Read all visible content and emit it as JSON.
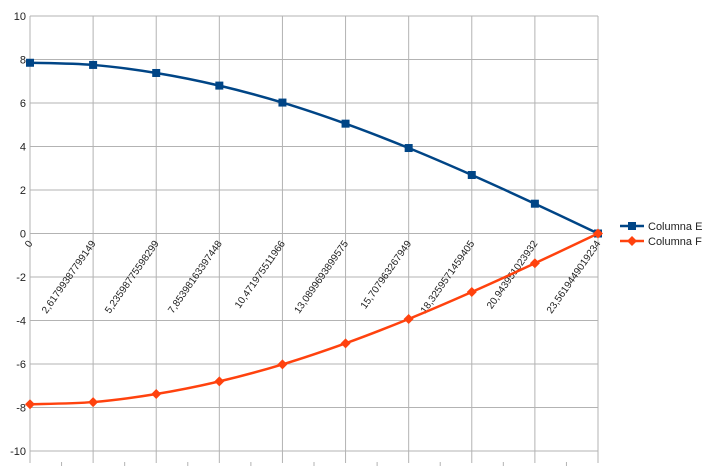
{
  "chart_data": {
    "type": "line",
    "title": "",
    "xlabel": "",
    "ylabel": "",
    "categories": [
      "0",
      "2,61799387799149",
      "5,23598775598299",
      "7,85398163397448",
      "10,471975511966",
      "13,0899693899575",
      "15,707963267949",
      "18,3259571459405",
      "20,943951023932",
      "23,5619449019234"
    ],
    "ylim": [
      -10,
      10
    ],
    "y_ticks": [
      "10",
      "8",
      "6",
      "4",
      "2",
      "0",
      "-2",
      "-4",
      "-6",
      "-8",
      "-10"
    ],
    "grid": true,
    "legend_position": "right",
    "series": [
      {
        "name": "Columna E",
        "color": "#004586",
        "marker": "square",
        "values": [
          7.85,
          7.75,
          7.38,
          6.8,
          6.02,
          5.05,
          3.93,
          2.69,
          1.37,
          0.0
        ]
      },
      {
        "name": "Columna F",
        "color": "#ff420e",
        "marker": "diamond",
        "values": [
          -7.85,
          -7.75,
          -7.38,
          -6.8,
          -6.02,
          -5.05,
          -3.93,
          -2.69,
          -1.37,
          0.0
        ]
      }
    ]
  }
}
